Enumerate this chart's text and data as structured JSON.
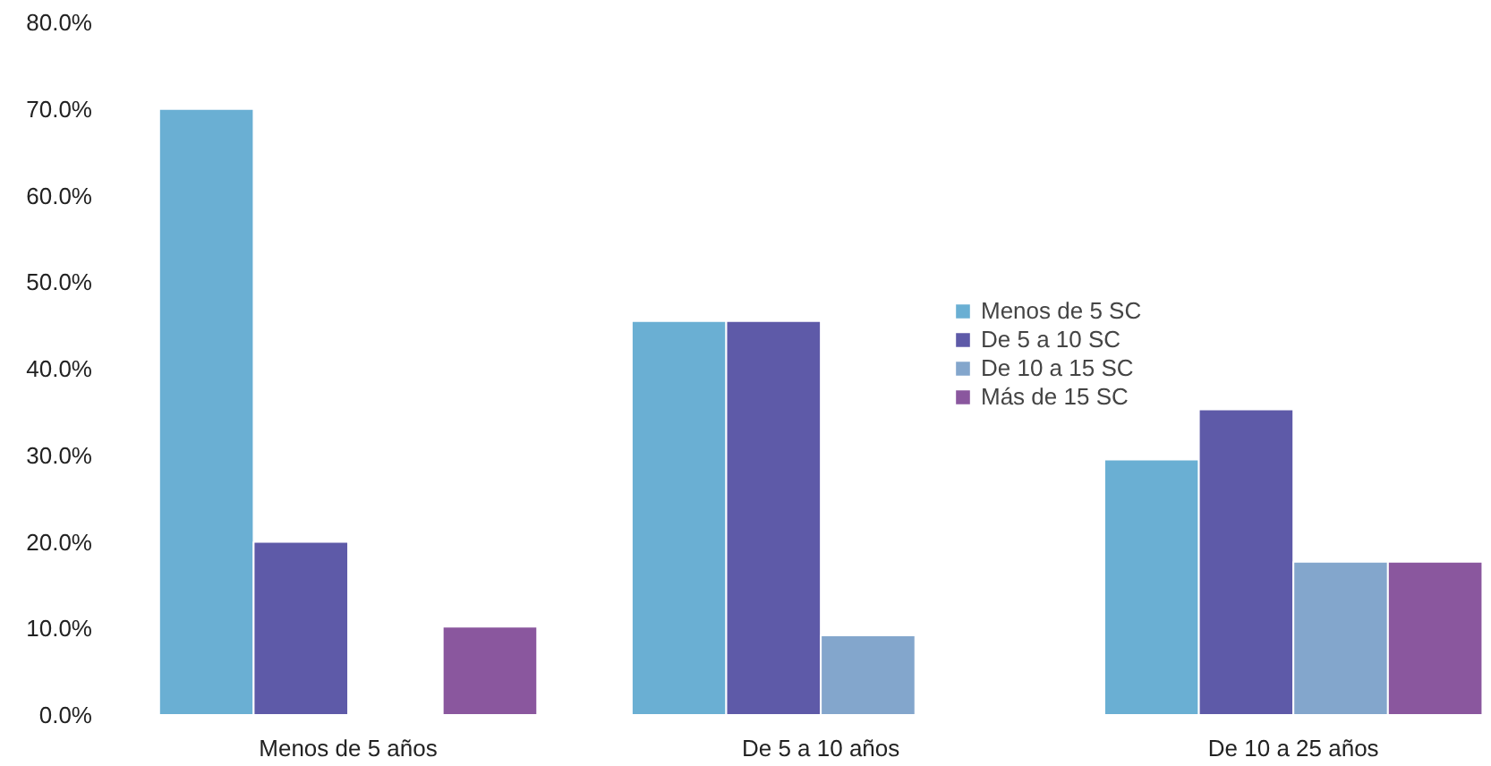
{
  "chart_data": {
    "type": "bar",
    "categories": [
      "Menos de 5 años",
      "De 5 a 10 años",
      "De 10 a 25 años"
    ],
    "series": [
      {
        "name": "Menos de 5 SC",
        "color": "#6aafd3",
        "values": [
          70.0,
          45.5,
          29.5
        ]
      },
      {
        "name": "De 5 a 10 SC",
        "color": "#5e5aa8",
        "values": [
          20.0,
          45.5,
          35.3
        ]
      },
      {
        "name": "De 10 a 15 SC",
        "color": "#83a6cc",
        "values": [
          null,
          9.2,
          17.7
        ]
      },
      {
        "name": "Más de 15 SC",
        "color": "#8a579e",
        "values": [
          10.2,
          null,
          17.7
        ]
      }
    ],
    "ylim": [
      0,
      80
    ],
    "yticks": [
      {
        "value": 0,
        "label": "0.0%"
      },
      {
        "value": 10,
        "label": "10.0%"
      },
      {
        "value": 20,
        "label": "20.0%"
      },
      {
        "value": 30,
        "label": "30.0%"
      },
      {
        "value": 40,
        "label": "40.0%"
      },
      {
        "value": 50,
        "label": "50.0%"
      },
      {
        "value": 60,
        "label": "60.0%"
      },
      {
        "value": 70,
        "label": "70.0%"
      },
      {
        "value": 80,
        "label": "80.0%"
      }
    ],
    "grid": false,
    "legend": "right"
  }
}
